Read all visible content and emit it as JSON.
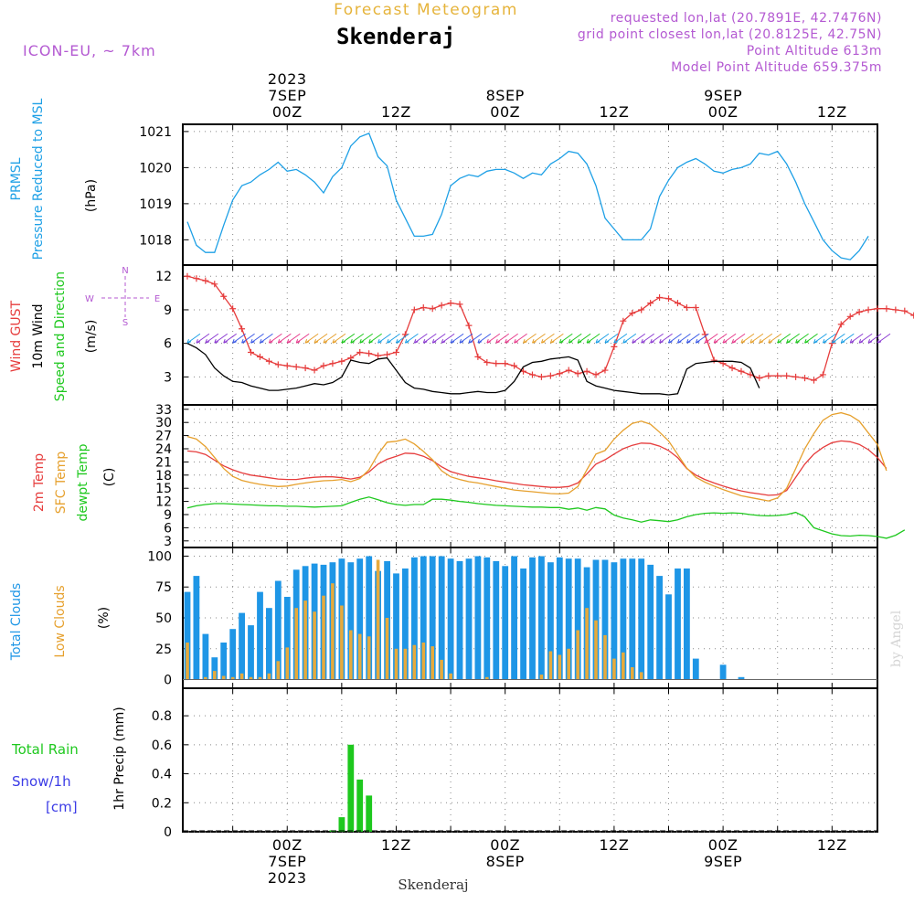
{
  "header": {
    "subtitle": "Forecast Meteogram",
    "location": "Skenderaj",
    "model": "ICON-EU, ~ 7km",
    "requested": "requested lon,lat (20.7891E, 42.7476N)",
    "gridpoint": "grid point closest lon,lat (20.8125E, 42.75N)",
    "point_altitude": "Point Altitude 613m",
    "model_altitude": "Model Point Altitude 659.375m",
    "footer_location": "Skenderaj",
    "watermark": "by Angel"
  },
  "time_axis": {
    "top_labels": [
      {
        "lines": [
          "2023",
          "7SEP",
          "00Z"
        ],
        "hour": 0
      },
      {
        "lines": [
          "12Z"
        ],
        "hour": 12
      },
      {
        "lines": [
          "8SEP",
          "00Z"
        ],
        "hour": 24
      },
      {
        "lines": [
          "12Z"
        ],
        "hour": 36
      },
      {
        "lines": [
          "9SEP",
          "00Z"
        ],
        "hour": 48
      },
      {
        "lines": [
          "12Z"
        ],
        "hour": 60
      }
    ],
    "bottom_labels": [
      {
        "lines": [
          "00Z",
          "7SEP",
          "2023"
        ],
        "hour": 0
      },
      {
        "lines": [
          "12Z"
        ],
        "hour": 12
      },
      {
        "lines": [
          "00Z",
          "8SEP"
        ],
        "hour": 24
      },
      {
        "lines": [
          "12Z"
        ],
        "hour": 36
      },
      {
        "lines": [
          "00Z",
          "9SEP"
        ],
        "hour": 48
      },
      {
        "lines": [
          "12Z"
        ],
        "hour": 60
      }
    ],
    "xlim_hours": [
      -11.5,
      65
    ]
  },
  "colors": {
    "pressure": "#1ea0e6",
    "gust": "#e63c3c",
    "wind": "#000000",
    "temp": "#e63c3c",
    "sfc": "#e6a02d",
    "dewpt": "#1ec81e",
    "total_cloud": "#1e96e6",
    "low_cloud": "#e6aa3c",
    "rain": "#1ec81e",
    "snow": "#3c3ce6",
    "label_purple": "#b45ad2",
    "label_orange": "#e6b43c"
  },
  "compass": {
    "n": "N",
    "s": "S",
    "w": "W",
    "e": "E"
  },
  "chart_data": [
    {
      "type": "line",
      "title": "PRMSL Pressure Reduced to MSL",
      "label_lines": [
        "PRMSL",
        "Pressure Reduced to MSL"
      ],
      "unit": "(hPa)",
      "ylim": [
        1017.3,
        1021.2
      ],
      "yticks": [
        1018,
        1019,
        1020,
        1021
      ],
      "x_start": -11,
      "x_step": 1,
      "series": [
        {
          "name": "PRMSL",
          "values": [
            1018.5,
            1017.85,
            1017.65,
            1017.65,
            1018.4,
            1019.1,
            1019.5,
            1019.6,
            1019.8,
            1019.95,
            1020.15,
            1019.9,
            1019.95,
            1019.8,
            1019.6,
            1019.3,
            1019.75,
            1020.0,
            1020.6,
            1020.85,
            1020.95,
            1020.3,
            1020.05,
            1019.1,
            1018.6,
            1018.1,
            1018.1,
            1018.15,
            1018.7,
            1019.5,
            1019.7,
            1019.8,
            1019.75,
            1019.9,
            1019.95,
            1019.95,
            1019.85,
            1019.7,
            1019.85,
            1019.8,
            1020.1,
            1020.25,
            1020.45,
            1020.4,
            1020.1,
            1019.5,
            1018.6,
            1018.3,
            1018.0,
            1018.0,
            1018.0,
            1018.3,
            1019.2,
            1019.65,
            1020.0,
            1020.15,
            1020.25,
            1020.1,
            1019.9,
            1019.85,
            1019.95,
            1020.0,
            1020.1,
            1020.4,
            1020.35,
            1020.45,
            1020.1,
            1019.6,
            1019.0,
            1018.5,
            1018.0,
            1017.7,
            1017.5,
            1017.45,
            1017.7,
            1018.1
          ]
        }
      ]
    },
    {
      "type": "line",
      "title": "Wind GUST / 10m Wind Speed and Direction",
      "label_lines": [
        "Wind GUST",
        "10m Wind",
        "Speed and Direction"
      ],
      "unit": "(m/s)",
      "ylim": [
        0.5,
        13
      ],
      "yticks": [
        3,
        6,
        9,
        12
      ],
      "x_start": -11,
      "x_step": 1,
      "series": [
        {
          "name": "Wind GUST",
          "values": [
            12.0,
            11.8,
            11.6,
            11.3,
            10.2,
            9.1,
            7.3,
            5.2,
            4.8,
            4.4,
            4.1,
            4.0,
            3.9,
            3.8,
            3.6,
            4.0,
            4.2,
            4.4,
            4.7,
            5.2,
            5.1,
            4.9,
            5.0,
            5.2,
            6.8,
            9.0,
            9.2,
            9.1,
            9.4,
            9.6,
            9.5,
            7.6,
            4.8,
            4.3,
            4.2,
            4.2,
            4.0,
            3.5,
            3.2,
            3.0,
            3.1,
            3.3,
            3.6,
            3.3,
            3.5,
            3.2,
            3.6,
            5.7,
            8.0,
            8.7,
            9.0,
            9.6,
            10.1,
            10.0,
            9.6,
            9.2,
            9.2,
            6.8,
            4.5,
            4.2,
            3.8,
            3.5,
            3.2,
            2.9,
            3.1,
            3.1,
            3.1,
            3.0,
            2.9,
            2.7,
            3.2,
            6.0,
            7.7,
            8.4,
            8.8,
            9.0,
            9.1,
            9.1,
            9.0,
            8.9,
            8.5,
            6.9
          ]
        },
        {
          "name": "10m Wind",
          "values": [
            6.0,
            5.6,
            5.0,
            3.8,
            3.1,
            2.6,
            2.5,
            2.2,
            2.0,
            1.8,
            1.8,
            1.9,
            2.0,
            2.2,
            2.4,
            2.3,
            2.5,
            3.0,
            4.5,
            4.3,
            4.2,
            4.6,
            4.7,
            3.6,
            2.5,
            2.0,
            1.9,
            1.7,
            1.6,
            1.5,
            1.5,
            1.6,
            1.7,
            1.6,
            1.6,
            1.8,
            2.6,
            3.9,
            4.3,
            4.4,
            4.6,
            4.7,
            4.8,
            4.5,
            2.6,
            2.2,
            2.0,
            1.8,
            1.7,
            1.6,
            1.5,
            1.5,
            1.5,
            1.4,
            1.5,
            3.7,
            4.2,
            4.3,
            4.4,
            4.4,
            4.4,
            4.3,
            3.8,
            2.0
          ]
        }
      ]
    },
    {
      "type": "line",
      "title": "2m Temp / SFC Temp / dewpt Temp",
      "label_lines": [
        "2m Temp",
        "SFC Temp",
        "dewpt Temp"
      ],
      "unit": "(C)",
      "ylim": [
        1.5,
        34
      ],
      "yticks": [
        3,
        6,
        9,
        12,
        15,
        18,
        21,
        24,
        27,
        30,
        33
      ],
      "x_start": -11,
      "x_step": 1,
      "series": [
        {
          "name": "2m Temp",
          "values": [
            23.5,
            23.3,
            22.7,
            21.4,
            20.1,
            19.2,
            18.5,
            18.0,
            17.7,
            17.4,
            17.1,
            17.0,
            17.0,
            17.3,
            17.5,
            17.6,
            17.6,
            17.4,
            17.1,
            17.5,
            18.7,
            20.5,
            21.6,
            22.3,
            23.0,
            22.9,
            22.3,
            21.3,
            19.9,
            18.8,
            18.2,
            17.7,
            17.4,
            17.1,
            16.7,
            16.4,
            16.1,
            15.8,
            15.6,
            15.4,
            15.2,
            15.2,
            15.4,
            16.2,
            18.3,
            20.5,
            21.5,
            22.8,
            24.0,
            24.8,
            25.3,
            25.2,
            24.6,
            23.6,
            22.0,
            19.5,
            18.0,
            17.0,
            16.2,
            15.5,
            14.9,
            14.4,
            14.0,
            13.7,
            13.4,
            13.5,
            14.5,
            17.5,
            20.5,
            22.8,
            24.3,
            25.4,
            25.8,
            25.6,
            25.0,
            23.8,
            22.0,
            19.5
          ]
        },
        {
          "name": "SFC Temp",
          "values": [
            26.8,
            26.2,
            24.5,
            22.0,
            19.5,
            17.7,
            16.8,
            16.3,
            15.9,
            15.6,
            15.4,
            15.5,
            15.9,
            16.2,
            16.5,
            16.7,
            16.8,
            17.0,
            16.5,
            17.2,
            19.2,
            22.8,
            25.5,
            25.7,
            26.2,
            25.1,
            23.4,
            21.5,
            19.0,
            17.6,
            17.0,
            16.5,
            16.2,
            15.8,
            15.4,
            15.0,
            14.6,
            14.4,
            14.2,
            14.0,
            13.8,
            13.7,
            13.9,
            15.4,
            19.2,
            22.8,
            23.6,
            26.2,
            28.2,
            29.8,
            30.3,
            29.6,
            27.8,
            25.8,
            22.7,
            19.6,
            17.5,
            16.4,
            15.5,
            14.7,
            14.0,
            13.3,
            12.9,
            12.5,
            12.1,
            12.8,
            15.0,
            19.5,
            24.0,
            27.5,
            30.5,
            31.8,
            32.2,
            31.6,
            30.3,
            27.6,
            25.0,
            19.0
          ]
        },
        {
          "name": "dewpt Temp",
          "values": [
            10.5,
            11.0,
            11.3,
            11.5,
            11.5,
            11.4,
            11.3,
            11.2,
            11.1,
            11.0,
            11.0,
            10.9,
            10.9,
            10.8,
            10.7,
            10.8,
            10.9,
            11.0,
            11.8,
            12.5,
            13.0,
            12.4,
            11.7,
            11.3,
            11.1,
            11.3,
            11.3,
            12.5,
            12.5,
            12.3,
            12.0,
            11.8,
            11.5,
            11.3,
            11.1,
            11.0,
            10.9,
            10.8,
            10.7,
            10.7,
            10.6,
            10.6,
            10.2,
            10.5,
            10.0,
            10.6,
            10.3,
            8.9,
            8.2,
            7.8,
            7.3,
            7.8,
            7.6,
            7.4,
            7.8,
            8.5,
            9.0,
            9.3,
            9.4,
            9.3,
            9.4,
            9.3,
            9.0,
            8.8,
            8.7,
            8.8,
            9.0,
            9.5,
            8.5,
            6.0,
            5.3,
            4.6,
            4.2,
            4.1,
            4.3,
            4.2,
            4.0,
            3.6,
            4.3,
            5.5
          ]
        }
      ]
    },
    {
      "type": "bar",
      "title": "Total Clouds / Low Clouds",
      "label_lines": [
        "Total Clouds",
        "Low Clouds"
      ],
      "unit": "(%)",
      "ylim": [
        -7,
        107
      ],
      "yticks": [
        0,
        25,
        50,
        75,
        100
      ],
      "x_start": -11,
      "x_step": 1,
      "series": [
        {
          "name": "Total Clouds",
          "values": [
            71,
            84,
            37,
            18,
            30,
            41,
            54,
            44,
            71,
            58,
            80,
            67,
            89,
            92,
            94,
            93,
            95,
            98,
            95,
            98,
            100,
            88,
            96,
            86,
            90,
            99,
            100,
            100,
            100,
            98,
            96,
            98,
            100,
            99,
            96,
            92,
            100,
            90,
            99,
            100,
            95,
            99,
            98,
            98,
            91,
            97,
            97,
            95,
            98,
            98,
            98,
            93,
            84,
            69,
            90,
            90,
            17,
            0,
            0,
            12,
            0,
            2,
            0,
            0,
            0,
            0,
            0,
            0,
            0,
            0,
            0,
            0,
            0,
            0,
            0,
            0,
            0,
            0
          ]
        },
        {
          "name": "Low Clouds",
          "values": [
            30,
            0,
            2,
            7,
            3,
            2,
            5,
            2,
            2,
            5,
            15,
            26,
            58,
            64,
            55,
            68,
            78,
            60,
            40,
            37,
            35,
            97,
            50,
            25,
            25,
            28,
            30,
            27,
            16,
            5,
            0,
            0,
            0,
            2,
            0,
            0,
            0,
            0,
            0,
            4,
            23,
            20,
            25,
            40,
            58,
            48,
            36,
            17,
            22,
            10,
            6,
            0,
            0,
            0,
            0,
            0,
            0,
            0,
            0,
            0,
            0,
            0,
            0,
            0,
            0,
            0,
            0,
            0,
            0,
            0,
            0,
            0,
            0,
            0,
            0,
            0,
            0,
            0
          ]
        }
      ]
    },
    {
      "type": "bar",
      "title": "Total Rain / Snow 1hr Precip",
      "label_lines": [
        "Total  Rain",
        "Snow/1h",
        "[cm]"
      ],
      "unit": "1hr Precip (mm)",
      "ylim": [
        0,
        0.99
      ],
      "yticks": [
        0,
        0.2,
        0.4,
        0.6,
        0.8
      ],
      "ytick_labels": [
        "0",
        "0.2",
        "0.4",
        "0.6",
        "0.8"
      ],
      "x": [
        5,
        6,
        7,
        8,
        9
      ],
      "series": [
        {
          "name": "Total Rain",
          "values": [
            0.01,
            0.1,
            0.6,
            0.36,
            0.25
          ]
        },
        {
          "name": "Snow/1h",
          "values": [
            0,
            0,
            0,
            0,
            0
          ]
        }
      ]
    }
  ]
}
